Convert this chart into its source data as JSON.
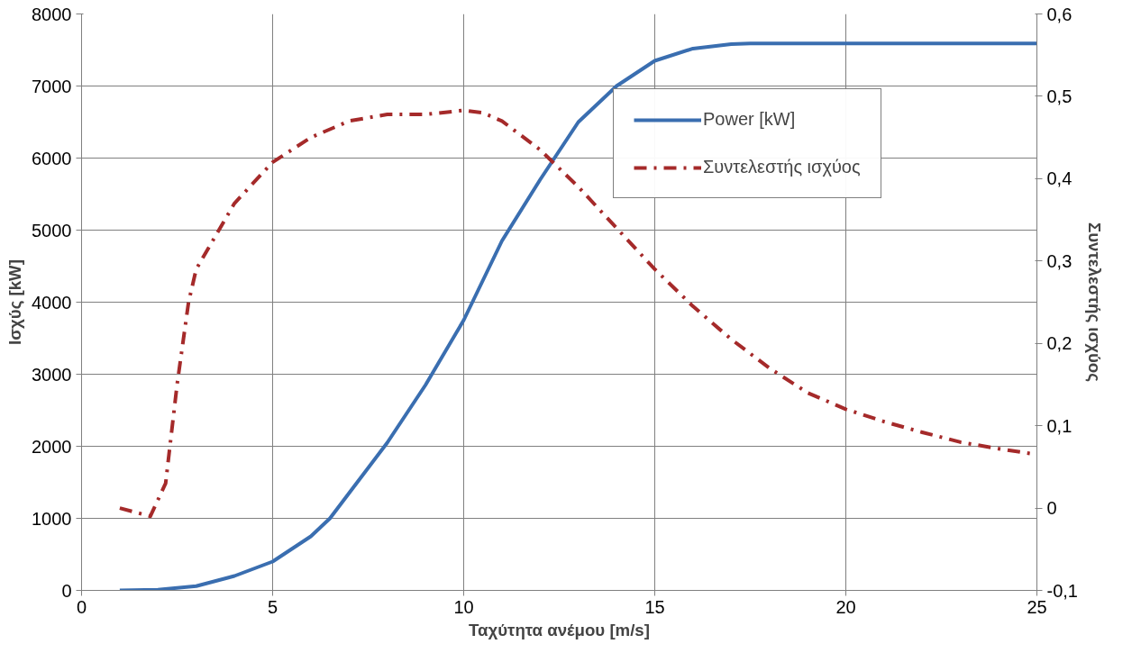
{
  "chart_data": {
    "type": "line",
    "xlabel": "Ταχύτητα ανέμου [m/s]",
    "ylabel": "Ισχύς [kW]",
    "y2label": "Συντελεστής ισχύος",
    "xlim": [
      0,
      25
    ],
    "xticks": [
      0,
      5,
      10,
      15,
      20,
      25
    ],
    "ylim": [
      0,
      8000
    ],
    "yticks": [
      0,
      1000,
      2000,
      3000,
      4000,
      5000,
      6000,
      7000,
      8000
    ],
    "y2lim": [
      -0.1,
      0.6
    ],
    "y2ticks": [
      {
        "value": -0.1,
        "label": "-0,1"
      },
      0,
      {
        "value": 0.1,
        "label": "0,1"
      },
      {
        "value": 0.2,
        "label": "0,2"
      },
      {
        "value": 0.3,
        "label": "0,3"
      },
      {
        "value": 0.4,
        "label": "0,4"
      },
      {
        "value": 0.5,
        "label": "0,5"
      },
      {
        "value": 0.6,
        "label": "0,6"
      }
    ],
    "grid": true,
    "legend": "top right",
    "series": [
      {
        "name": "Power [kW]",
        "color": "#3a6eb0",
        "line_style": "solid",
        "x": [
          1,
          2,
          3,
          4,
          5,
          6,
          6.5,
          7,
          8,
          9,
          10,
          11,
          12,
          13,
          14,
          15,
          16,
          17,
          17.5,
          18,
          19,
          20,
          21,
          22,
          23,
          24,
          25
        ],
        "values": [
          0,
          10,
          60,
          200,
          400,
          750,
          1000,
          1350,
          2050,
          2850,
          3750,
          4850,
          5700,
          6500,
          7000,
          7350,
          7520,
          7580,
          7590,
          7590,
          7590,
          7590,
          7590,
          7590,
          7590,
          7590,
          7590
        ]
      },
      {
        "name": "Συντελεστής ισχύος",
        "color": "#a52a2a",
        "line_style": "dashdot",
        "axis": "y2",
        "x": [
          1,
          1.8,
          2.2,
          2.5,
          2.8,
          3,
          3.5,
          4,
          5,
          6,
          7,
          8,
          9,
          10,
          10.5,
          11,
          12,
          13,
          14,
          15,
          16,
          17,
          18,
          19,
          20,
          21,
          22,
          23,
          24,
          25
        ],
        "values": [
          0,
          -0.01,
          0.03,
          0.15,
          0.25,
          0.29,
          0.33,
          0.37,
          0.42,
          0.45,
          0.47,
          0.478,
          0.478,
          0.483,
          0.48,
          0.47,
          0.435,
          0.39,
          0.34,
          0.29,
          0.245,
          0.205,
          0.17,
          0.14,
          0.12,
          0.105,
          0.092,
          0.08,
          0.072,
          0.065
        ]
      }
    ]
  }
}
